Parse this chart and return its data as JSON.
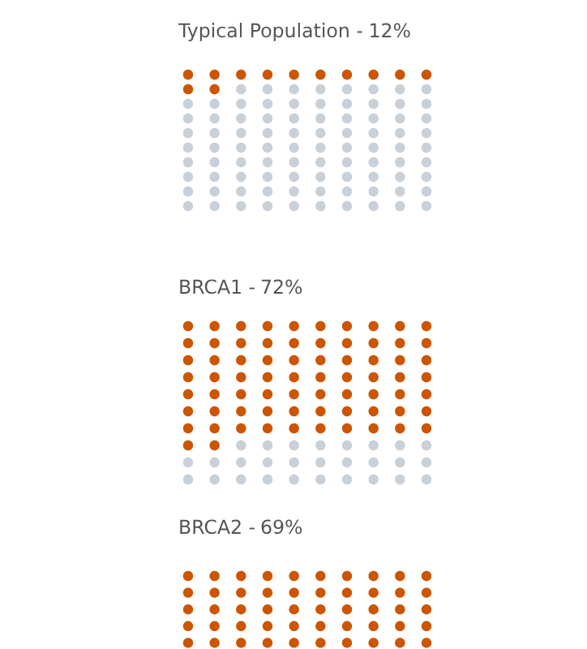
{
  "chart_data": [
    {
      "type": "other",
      "title": "Typical Population -",
      "values": [
        12
      ],
      "value_labels": [
        "12%"
      ],
      "colors": [
        "#cc5500"
      ]
    },
    {
      "type": "other",
      "title": "BRCA1 -",
      "values": [
        72
      ],
      "value_labels": [
        "72%"
      ],
      "colors": [
        "#cc5500"
      ]
    },
    {
      "type": "other",
      "title": "BRCA2 -",
      "values": [
        69
      ],
      "value_labels": [
        "69%"
      ],
      "colors": [
        "#cc5500"
      ]
    }
  ]
}
